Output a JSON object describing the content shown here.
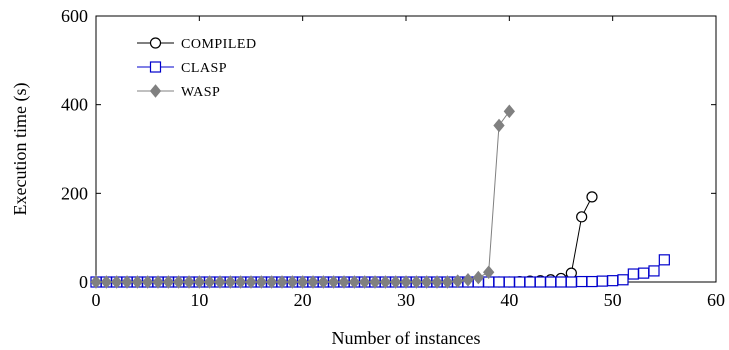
{
  "chart_data": {
    "type": "line",
    "xlabel": "Number of instances",
    "ylabel": "Execution time (s)",
    "xlim": [
      0,
      60
    ],
    "ylim": [
      0,
      600
    ],
    "xticks": [
      0,
      10,
      20,
      30,
      40,
      50,
      60
    ],
    "yticks": [
      0,
      200,
      400,
      600
    ],
    "grid": false,
    "legend_position": "top-left",
    "series": [
      {
        "name": "COMPILED",
        "color": "#000000",
        "marker": "circle",
        "x": [
          0,
          1,
          2,
          3,
          4,
          5,
          6,
          7,
          8,
          9,
          10,
          11,
          12,
          13,
          14,
          15,
          16,
          17,
          18,
          19,
          20,
          21,
          22,
          23,
          24,
          25,
          26,
          27,
          28,
          29,
          30,
          31,
          32,
          33,
          34,
          35,
          36,
          37,
          38,
          39,
          40,
          41,
          42,
          43,
          44,
          45,
          46,
          47,
          48
        ],
        "y": [
          0,
          0,
          0,
          0,
          0,
          0,
          0,
          0,
          0,
          0,
          0,
          0,
          0,
          0,
          0,
          0,
          0,
          0,
          0,
          0,
          0,
          0,
          0,
          0,
          0,
          0,
          0,
          0,
          0,
          0,
          0,
          0,
          0,
          0,
          0,
          0,
          0,
          0,
          0,
          0,
          0,
          1,
          2,
          3,
          5,
          8,
          20,
          147,
          192
        ]
      },
      {
        "name": "CLASP",
        "color": "#0000cc",
        "marker": "square",
        "x": [
          0,
          1,
          2,
          3,
          4,
          5,
          6,
          7,
          8,
          9,
          10,
          11,
          12,
          13,
          14,
          15,
          16,
          17,
          18,
          19,
          20,
          21,
          22,
          23,
          24,
          25,
          26,
          27,
          28,
          29,
          30,
          31,
          32,
          33,
          34,
          35,
          36,
          37,
          38,
          39,
          40,
          41,
          42,
          43,
          44,
          45,
          46,
          47,
          48,
          49,
          50,
          51,
          52,
          53,
          54,
          55
        ],
        "y": [
          0,
          0,
          0,
          0,
          0,
          0,
          0,
          0,
          0,
          0,
          0,
          0,
          0,
          0,
          0,
          0,
          0,
          0,
          0,
          0,
          0,
          0,
          0,
          0,
          0,
          0,
          0,
          0,
          0,
          0,
          0,
          0,
          0,
          0,
          0,
          0,
          0,
          0,
          0,
          0,
          0,
          0,
          0,
          0,
          0,
          0,
          0,
          1,
          1,
          2,
          3,
          5,
          18,
          20,
          25,
          50
        ]
      },
      {
        "name": "WASP",
        "color": "#808080",
        "marker": "diamond",
        "x": [
          0,
          1,
          2,
          3,
          4,
          5,
          6,
          7,
          8,
          9,
          10,
          11,
          12,
          13,
          14,
          15,
          16,
          17,
          18,
          19,
          20,
          21,
          22,
          23,
          24,
          25,
          26,
          27,
          28,
          29,
          30,
          31,
          32,
          33,
          34,
          35,
          36,
          37,
          38,
          39,
          40
        ],
        "y": [
          0,
          0,
          0,
          0,
          0,
          0,
          0,
          0,
          0,
          0,
          0,
          0,
          0,
          0,
          0,
          0,
          0,
          0,
          0,
          0,
          0,
          0,
          0,
          0,
          0,
          0,
          0,
          0,
          0,
          0,
          0,
          0,
          0,
          0,
          0,
          2,
          5,
          10,
          22,
          353,
          385
        ]
      }
    ]
  }
}
